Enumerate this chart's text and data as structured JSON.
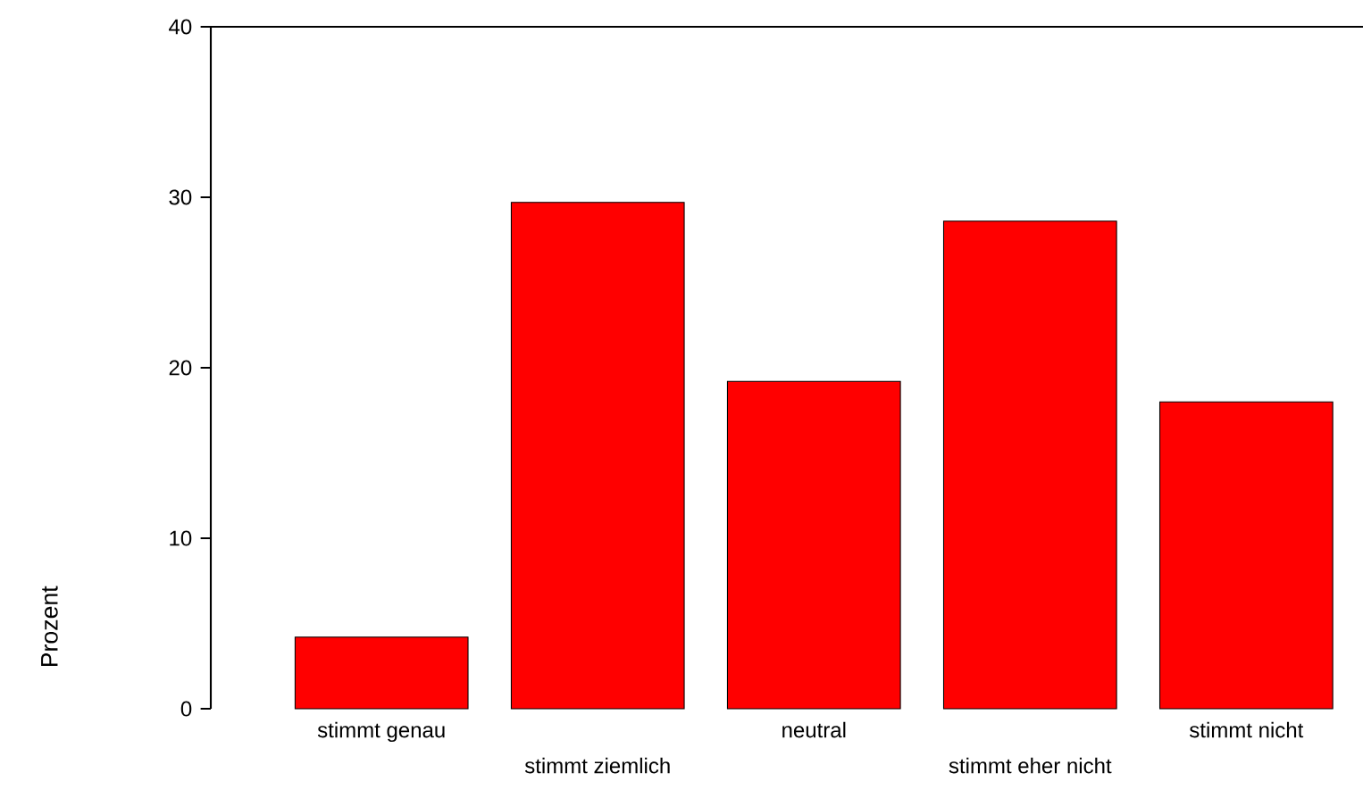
{
  "chart_data": {
    "type": "bar",
    "ylabel": "Prozent",
    "categories": [
      "stimmt genau",
      "stimmt ziemlich",
      "neutral",
      "stimmt eher nicht",
      "stimmt nicht"
    ],
    "values": [
      4.2,
      29.7,
      19.2,
      28.6,
      18.0
    ],
    "color": "#ff0000",
    "ylim": [
      0,
      40
    ],
    "yticks": [
      0,
      10,
      20,
      30,
      40
    ],
    "grid": false
  }
}
